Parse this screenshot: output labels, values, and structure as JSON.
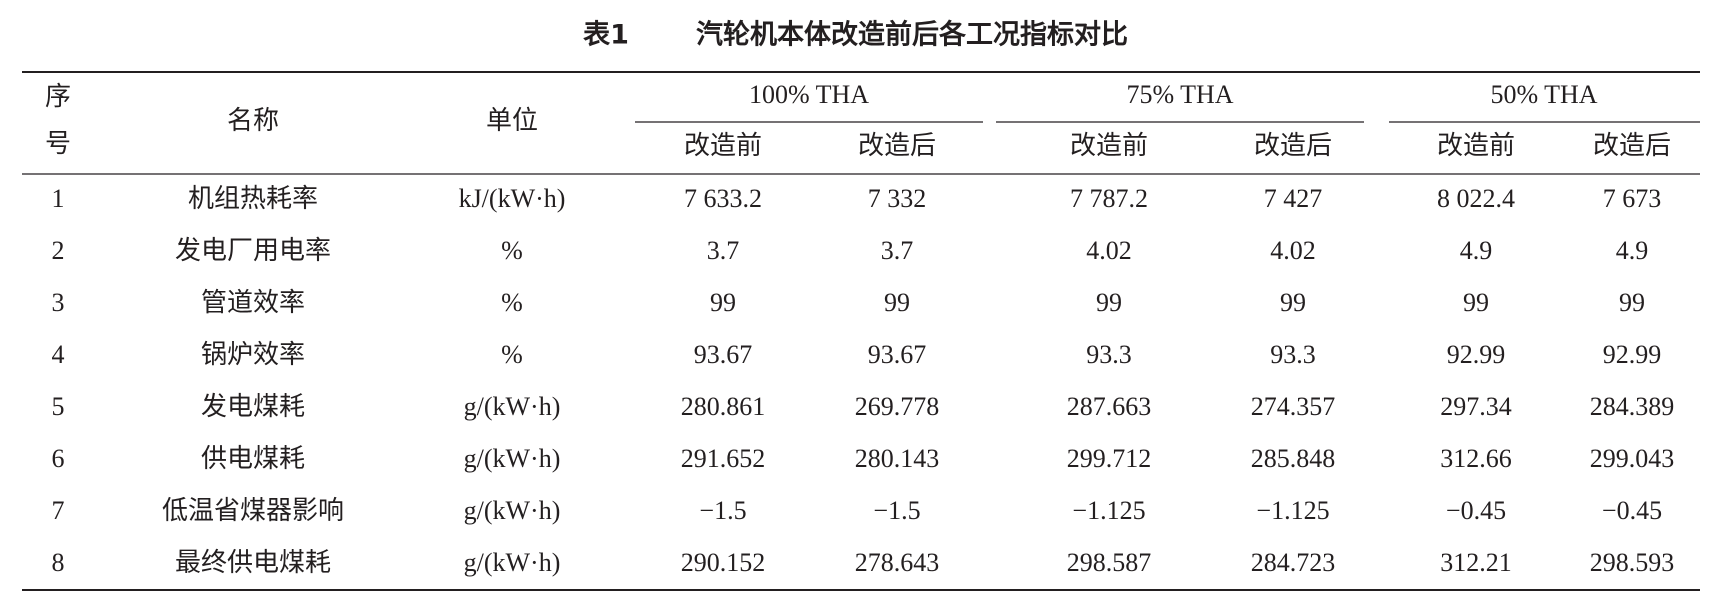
{
  "title": {
    "number": "表1",
    "text": "汽轮机本体改造前后各工况指标对比"
  },
  "header": {
    "index": [
      "序",
      "号"
    ],
    "name": "名称",
    "unit": "单位",
    "groups": [
      "100% THA",
      "75% THA",
      "50% THA"
    ],
    "subheaders": [
      "改造前",
      "改造后",
      "改造前",
      "改造后",
      "改造前",
      "改造后"
    ]
  },
  "table": {
    "rows": [
      [
        "1",
        "机组热耗率",
        "kJ/(kW·h)",
        "7 633.2",
        "7 332",
        "7 787.2",
        "7 427",
        "8 022.4",
        "7 673"
      ],
      [
        "2",
        "发电厂用电率",
        "%",
        "3.7",
        "3.7",
        "4.02",
        "4.02",
        "4.9",
        "4.9"
      ],
      [
        "3",
        "管道效率",
        "%",
        "99",
        "99",
        "99",
        "99",
        "99",
        "99"
      ],
      [
        "4",
        "锅炉效率",
        "%",
        "93.67",
        "93.67",
        "93.3",
        "93.3",
        "92.99",
        "92.99"
      ],
      [
        "5",
        "发电煤耗",
        "g/(kW·h)",
        "280.861",
        "269.778",
        "287.663",
        "274.357",
        "297.34",
        "284.389"
      ],
      [
        "6",
        "供电煤耗",
        "g/(kW·h)",
        "291.652",
        "280.143",
        "299.712",
        "285.848",
        "312.66",
        "299.043"
      ],
      [
        "7",
        "低温省煤器影响",
        "g/(kW·h)",
        "−1.5",
        "−1.5",
        "−1.125",
        "−1.125",
        "−0.45",
        "−0.45"
      ],
      [
        "8",
        "最终供电煤耗",
        "g/(kW·h)",
        "290.152",
        "278.643",
        "298.587",
        "284.723",
        "312.21",
        "298.593"
      ]
    ]
  }
}
